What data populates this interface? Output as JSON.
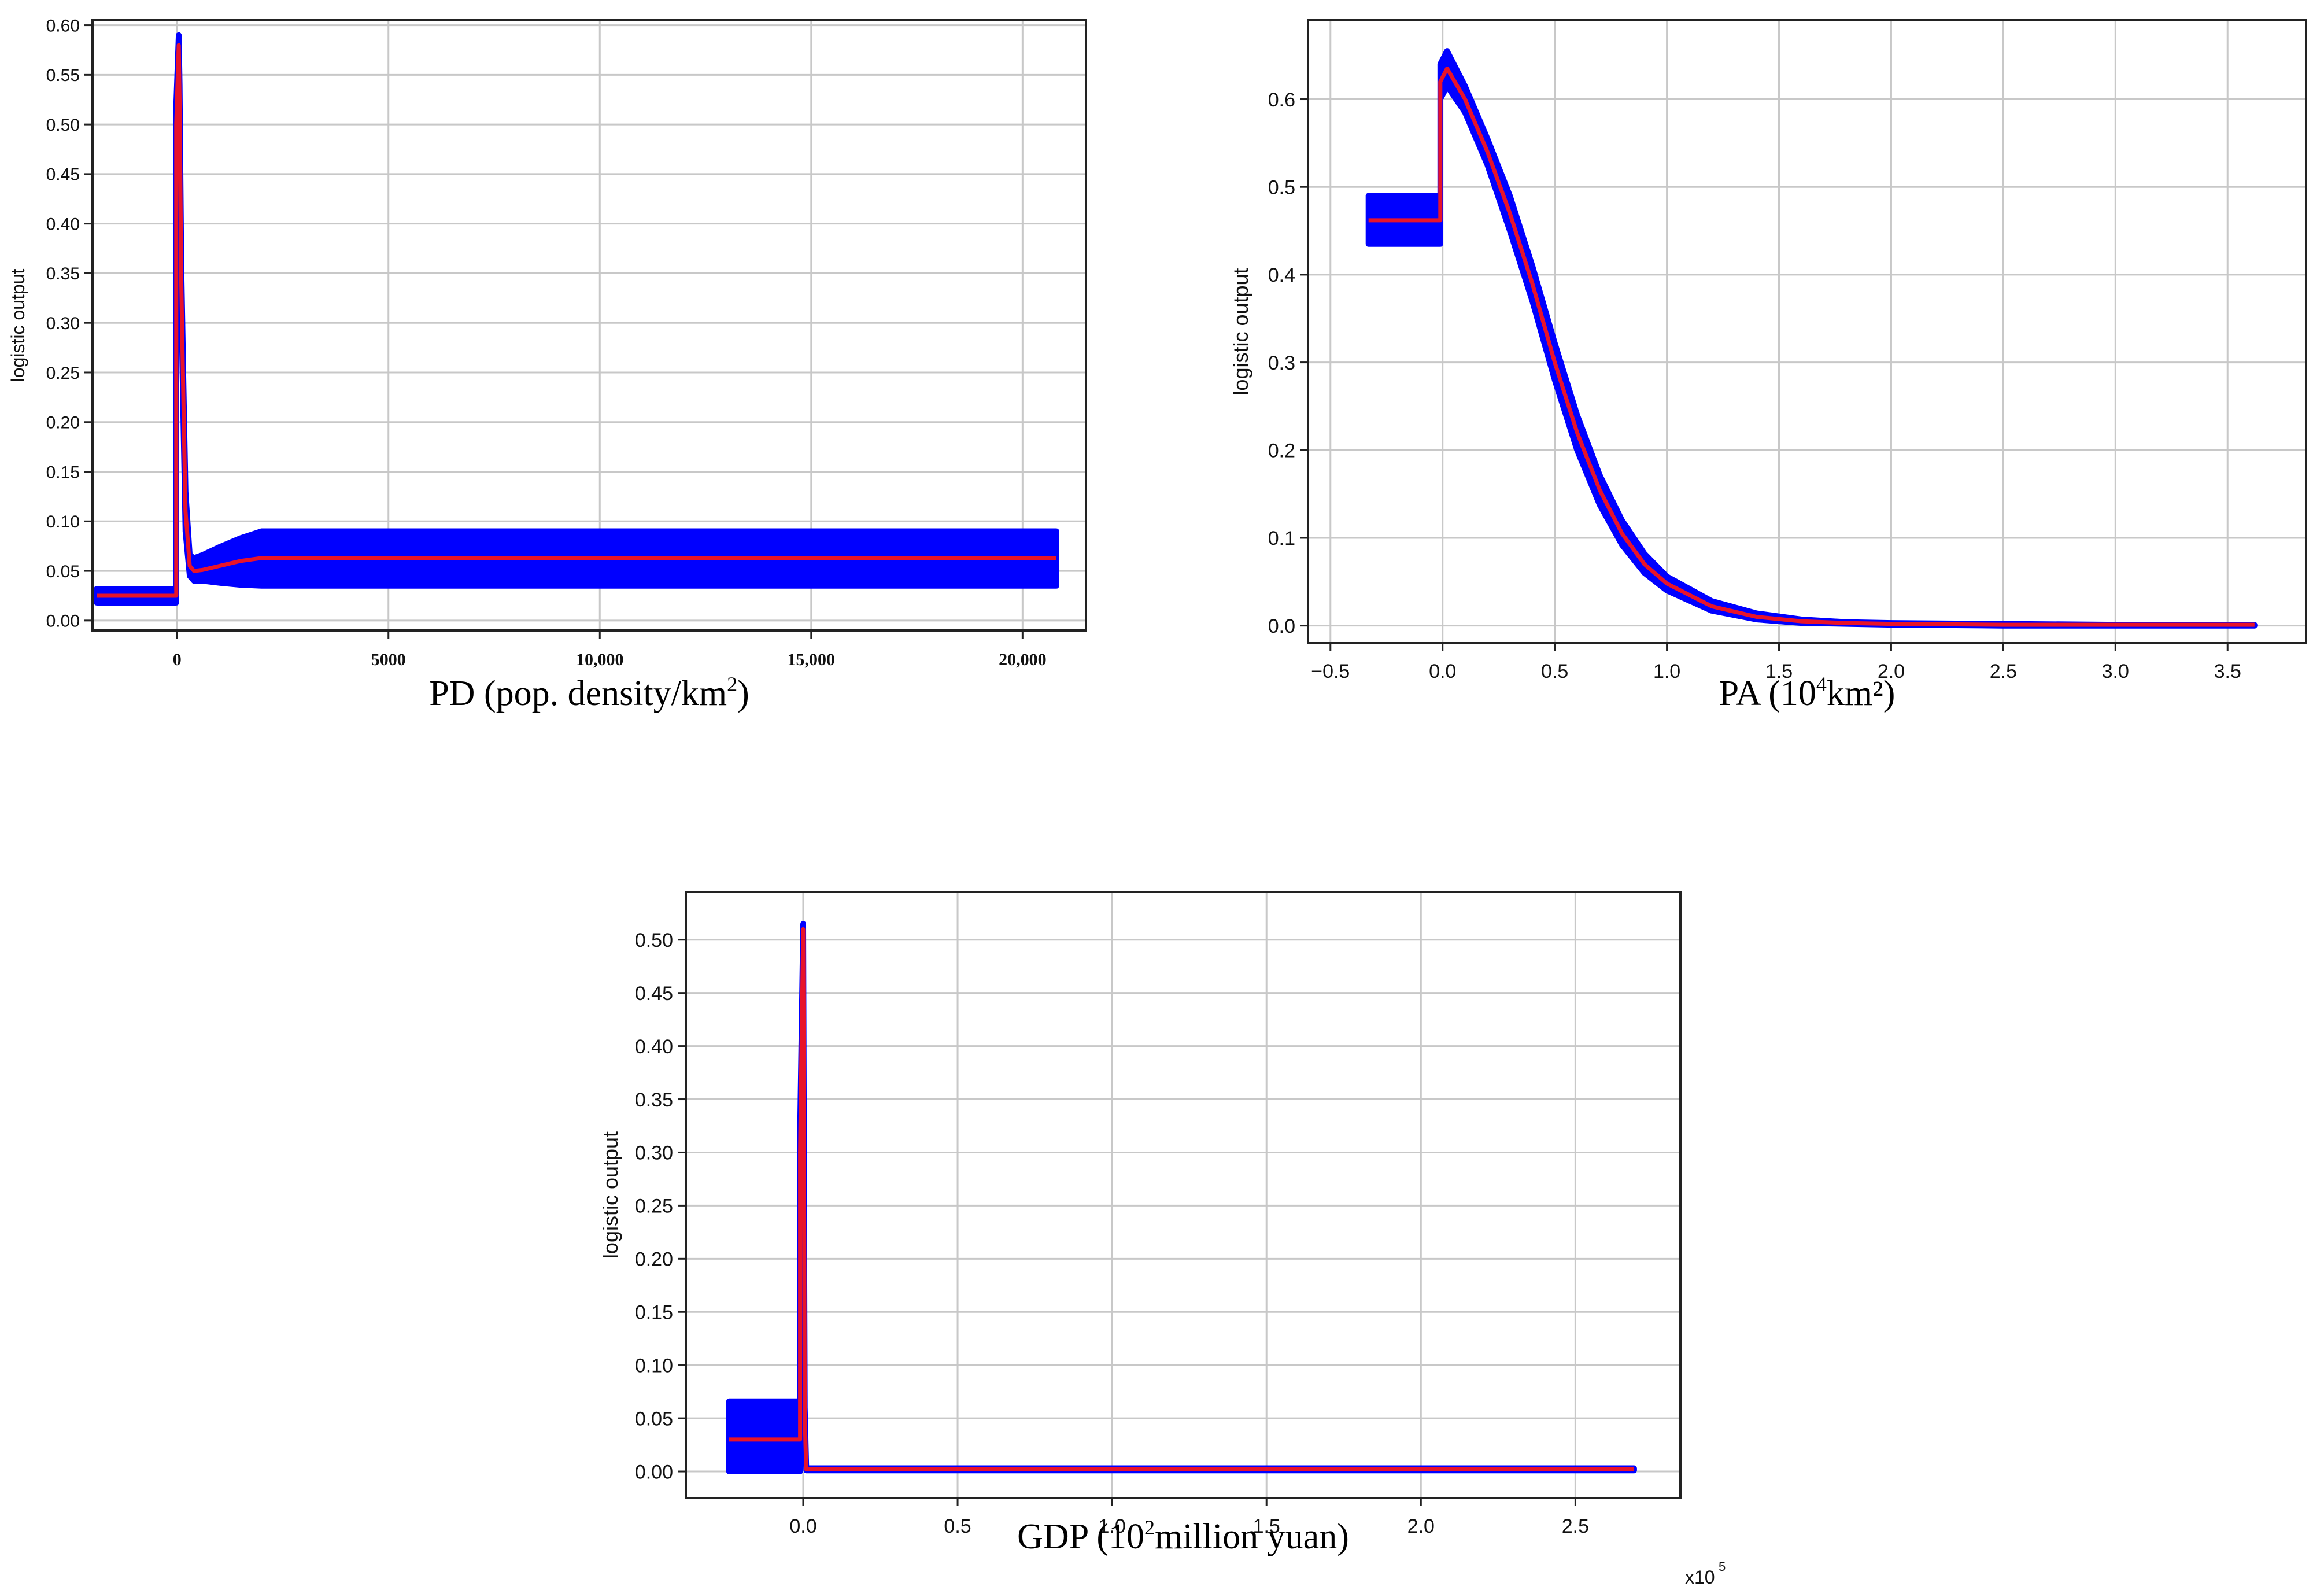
{
  "chart_data": [
    {
      "type": "line",
      "xlabel": "PD (pop. density/km",
      "xlabel_sup": "2",
      "xlabel_tail": ")",
      "ylabel": "logistic output",
      "xlim": [
        -2000,
        21500
      ],
      "ylim": [
        -0.01,
        0.605
      ],
      "xticks": [
        0,
        5000,
        10000,
        15000,
        20000
      ],
      "xtick_labels": [
        "0",
        "5000",
        "10,000",
        "15,000",
        "20,000"
      ],
      "yticks": [
        0.0,
        0.05,
        0.1,
        0.15,
        0.2,
        0.25,
        0.3,
        0.35,
        0.4,
        0.45,
        0.5,
        0.55,
        0.6
      ],
      "ytick_labels": [
        "0.00",
        "0.05",
        "0.10",
        "0.15",
        "0.20",
        "0.25",
        "0.30",
        "0.35",
        "0.40",
        "0.45",
        "0.50",
        "0.55",
        "0.60"
      ],
      "grid": true,
      "series": [
        {
          "role": "mean",
          "color": "#e8132a",
          "x": [
            -1900,
            -20,
            -20,
            40,
            60,
            100,
            150,
            200,
            300,
            400,
            600,
            1000,
            1500,
            2000,
            3000,
            10000,
            20800
          ],
          "y": [
            0.025,
            0.025,
            0.5,
            0.58,
            0.52,
            0.34,
            0.22,
            0.11,
            0.055,
            0.05,
            0.051,
            0.055,
            0.06,
            0.063,
            0.063,
            0.063,
            0.063
          ]
        },
        {
          "role": "band-upper",
          "color": "#0000ff",
          "x": [
            -1900,
            -20,
            -20,
            40,
            60,
            100,
            150,
            200,
            300,
            400,
            600,
            1000,
            1500,
            2000,
            3000,
            10000,
            20800
          ],
          "y": [
            0.032,
            0.032,
            0.52,
            0.59,
            0.54,
            0.36,
            0.24,
            0.13,
            0.066,
            0.063,
            0.066,
            0.074,
            0.083,
            0.09,
            0.09,
            0.09,
            0.09
          ]
        },
        {
          "role": "band-lower",
          "color": "#0000ff",
          "x": [
            -1900,
            -20,
            -20,
            40,
            60,
            100,
            150,
            200,
            300,
            400,
            600,
            1000,
            1500,
            2000,
            3000,
            10000,
            20800
          ],
          "y": [
            0.018,
            0.018,
            0.48,
            0.57,
            0.5,
            0.32,
            0.2,
            0.09,
            0.045,
            0.04,
            0.04,
            0.038,
            0.036,
            0.035,
            0.035,
            0.035,
            0.035
          ]
        }
      ]
    },
    {
      "type": "line",
      "xlabel": "PA (10",
      "xlabel_sup": "4",
      "xlabel_tail": "km²)",
      "ylabel": "logistic output",
      "xlim": [
        -0.6,
        3.85
      ],
      "ylim": [
        -0.02,
        0.69
      ],
      "xticks": [
        -0.5,
        0.0,
        0.5,
        1.0,
        1.5,
        2.0,
        2.5,
        3.0,
        3.5
      ],
      "xtick_labels": [
        "−0.5",
        "0.0",
        "0.5",
        "1.0",
        "1.5",
        "2.0",
        "2.5",
        "3.0",
        "3.5"
      ],
      "yticks": [
        0.0,
        0.1,
        0.2,
        0.3,
        0.4,
        0.5,
        0.6
      ],
      "ytick_labels": [
        "0.0",
        "0.1",
        "0.2",
        "0.3",
        "0.4",
        "0.5",
        "0.6"
      ],
      "grid": true,
      "series": [
        {
          "role": "mean",
          "color": "#e8132a",
          "x": [
            -0.33,
            -0.01,
            -0.01,
            0.02,
            0.1,
            0.2,
            0.3,
            0.4,
            0.5,
            0.6,
            0.7,
            0.8,
            0.9,
            1.0,
            1.2,
            1.4,
            1.6,
            1.8,
            2.0,
            2.5,
            3.0,
            3.62
          ],
          "y": [
            0.462,
            0.462,
            0.62,
            0.635,
            0.6,
            0.54,
            0.47,
            0.39,
            0.3,
            0.22,
            0.155,
            0.105,
            0.07,
            0.048,
            0.022,
            0.01,
            0.005,
            0.003,
            0.002,
            0.001,
            0.001,
            0.001
          ]
        },
        {
          "role": "band-upper",
          "color": "#0000ff",
          "x": [
            -0.33,
            -0.01,
            -0.01,
            0.02,
            0.1,
            0.2,
            0.3,
            0.4,
            0.5,
            0.6,
            0.7,
            0.8,
            0.9,
            1.0,
            1.2,
            1.4,
            1.6,
            1.8,
            2.0,
            2.5,
            3.0,
            3.62
          ],
          "y": [
            0.49,
            0.49,
            0.64,
            0.655,
            0.615,
            0.555,
            0.49,
            0.41,
            0.322,
            0.24,
            0.172,
            0.12,
            0.082,
            0.056,
            0.028,
            0.014,
            0.007,
            0.004,
            0.003,
            0.002,
            0.001,
            0.001
          ]
        },
        {
          "role": "band-lower",
          "color": "#0000ff",
          "x": [
            -0.33,
            -0.01,
            -0.01,
            0.02,
            0.1,
            0.2,
            0.3,
            0.4,
            0.5,
            0.6,
            0.7,
            0.8,
            0.9,
            1.0,
            1.2,
            1.4,
            1.6,
            1.8,
            2.0,
            2.5,
            3.0,
            3.62
          ],
          "y": [
            0.435,
            0.435,
            0.6,
            0.615,
            0.585,
            0.525,
            0.45,
            0.37,
            0.28,
            0.2,
            0.138,
            0.092,
            0.06,
            0.04,
            0.017,
            0.007,
            0.003,
            0.002,
            0.001,
            0.0,
            0.0,
            0.0
          ]
        }
      ]
    },
    {
      "type": "line",
      "xlabel": "GDP (10",
      "xlabel_sup": "2",
      "xlabel_tail": "million yuan)",
      "x_multiplier": "x10",
      "x_multiplier_exp": "5",
      "ylabel": "logistic output",
      "xlim": [
        -0.38,
        2.84
      ],
      "ylim": [
        -0.025,
        0.545
      ],
      "xticks": [
        0.0,
        0.5,
        1.0,
        1.5,
        2.0,
        2.5
      ],
      "xtick_labels": [
        "0.0",
        "0.5",
        "1.0",
        "1.5",
        "2.0",
        "2.5"
      ],
      "yticks": [
        0.0,
        0.05,
        0.1,
        0.15,
        0.2,
        0.25,
        0.3,
        0.35,
        0.4,
        0.45,
        0.5
      ],
      "ytick_labels": [
        "0.00",
        "0.05",
        "0.10",
        "0.15",
        "0.20",
        "0.25",
        "0.30",
        "0.35",
        "0.40",
        "0.45",
        "0.50"
      ],
      "grid": true,
      "series": [
        {
          "role": "mean",
          "color": "#e8132a",
          "x": [
            -0.24,
            -0.01,
            -0.01,
            0.0,
            0.005,
            0.01,
            2.69
          ],
          "y": [
            0.03,
            0.03,
            0.3,
            0.51,
            0.05,
            0.002,
            0.002
          ]
        },
        {
          "role": "band-upper",
          "color": "#0000ff",
          "x": [
            -0.24,
            -0.01,
            -0.01,
            0.0,
            0.005,
            0.01,
            2.69
          ],
          "y": [
            0.066,
            0.066,
            0.32,
            0.515,
            0.06,
            0.003,
            0.003
          ]
        },
        {
          "role": "band-lower",
          "color": "#0000ff",
          "x": [
            -0.24,
            -0.01,
            -0.01,
            0.0,
            0.005,
            0.01,
            2.69
          ],
          "y": [
            0.0,
            0.0,
            0.28,
            0.5,
            0.04,
            0.001,
            0.001
          ]
        }
      ]
    }
  ]
}
